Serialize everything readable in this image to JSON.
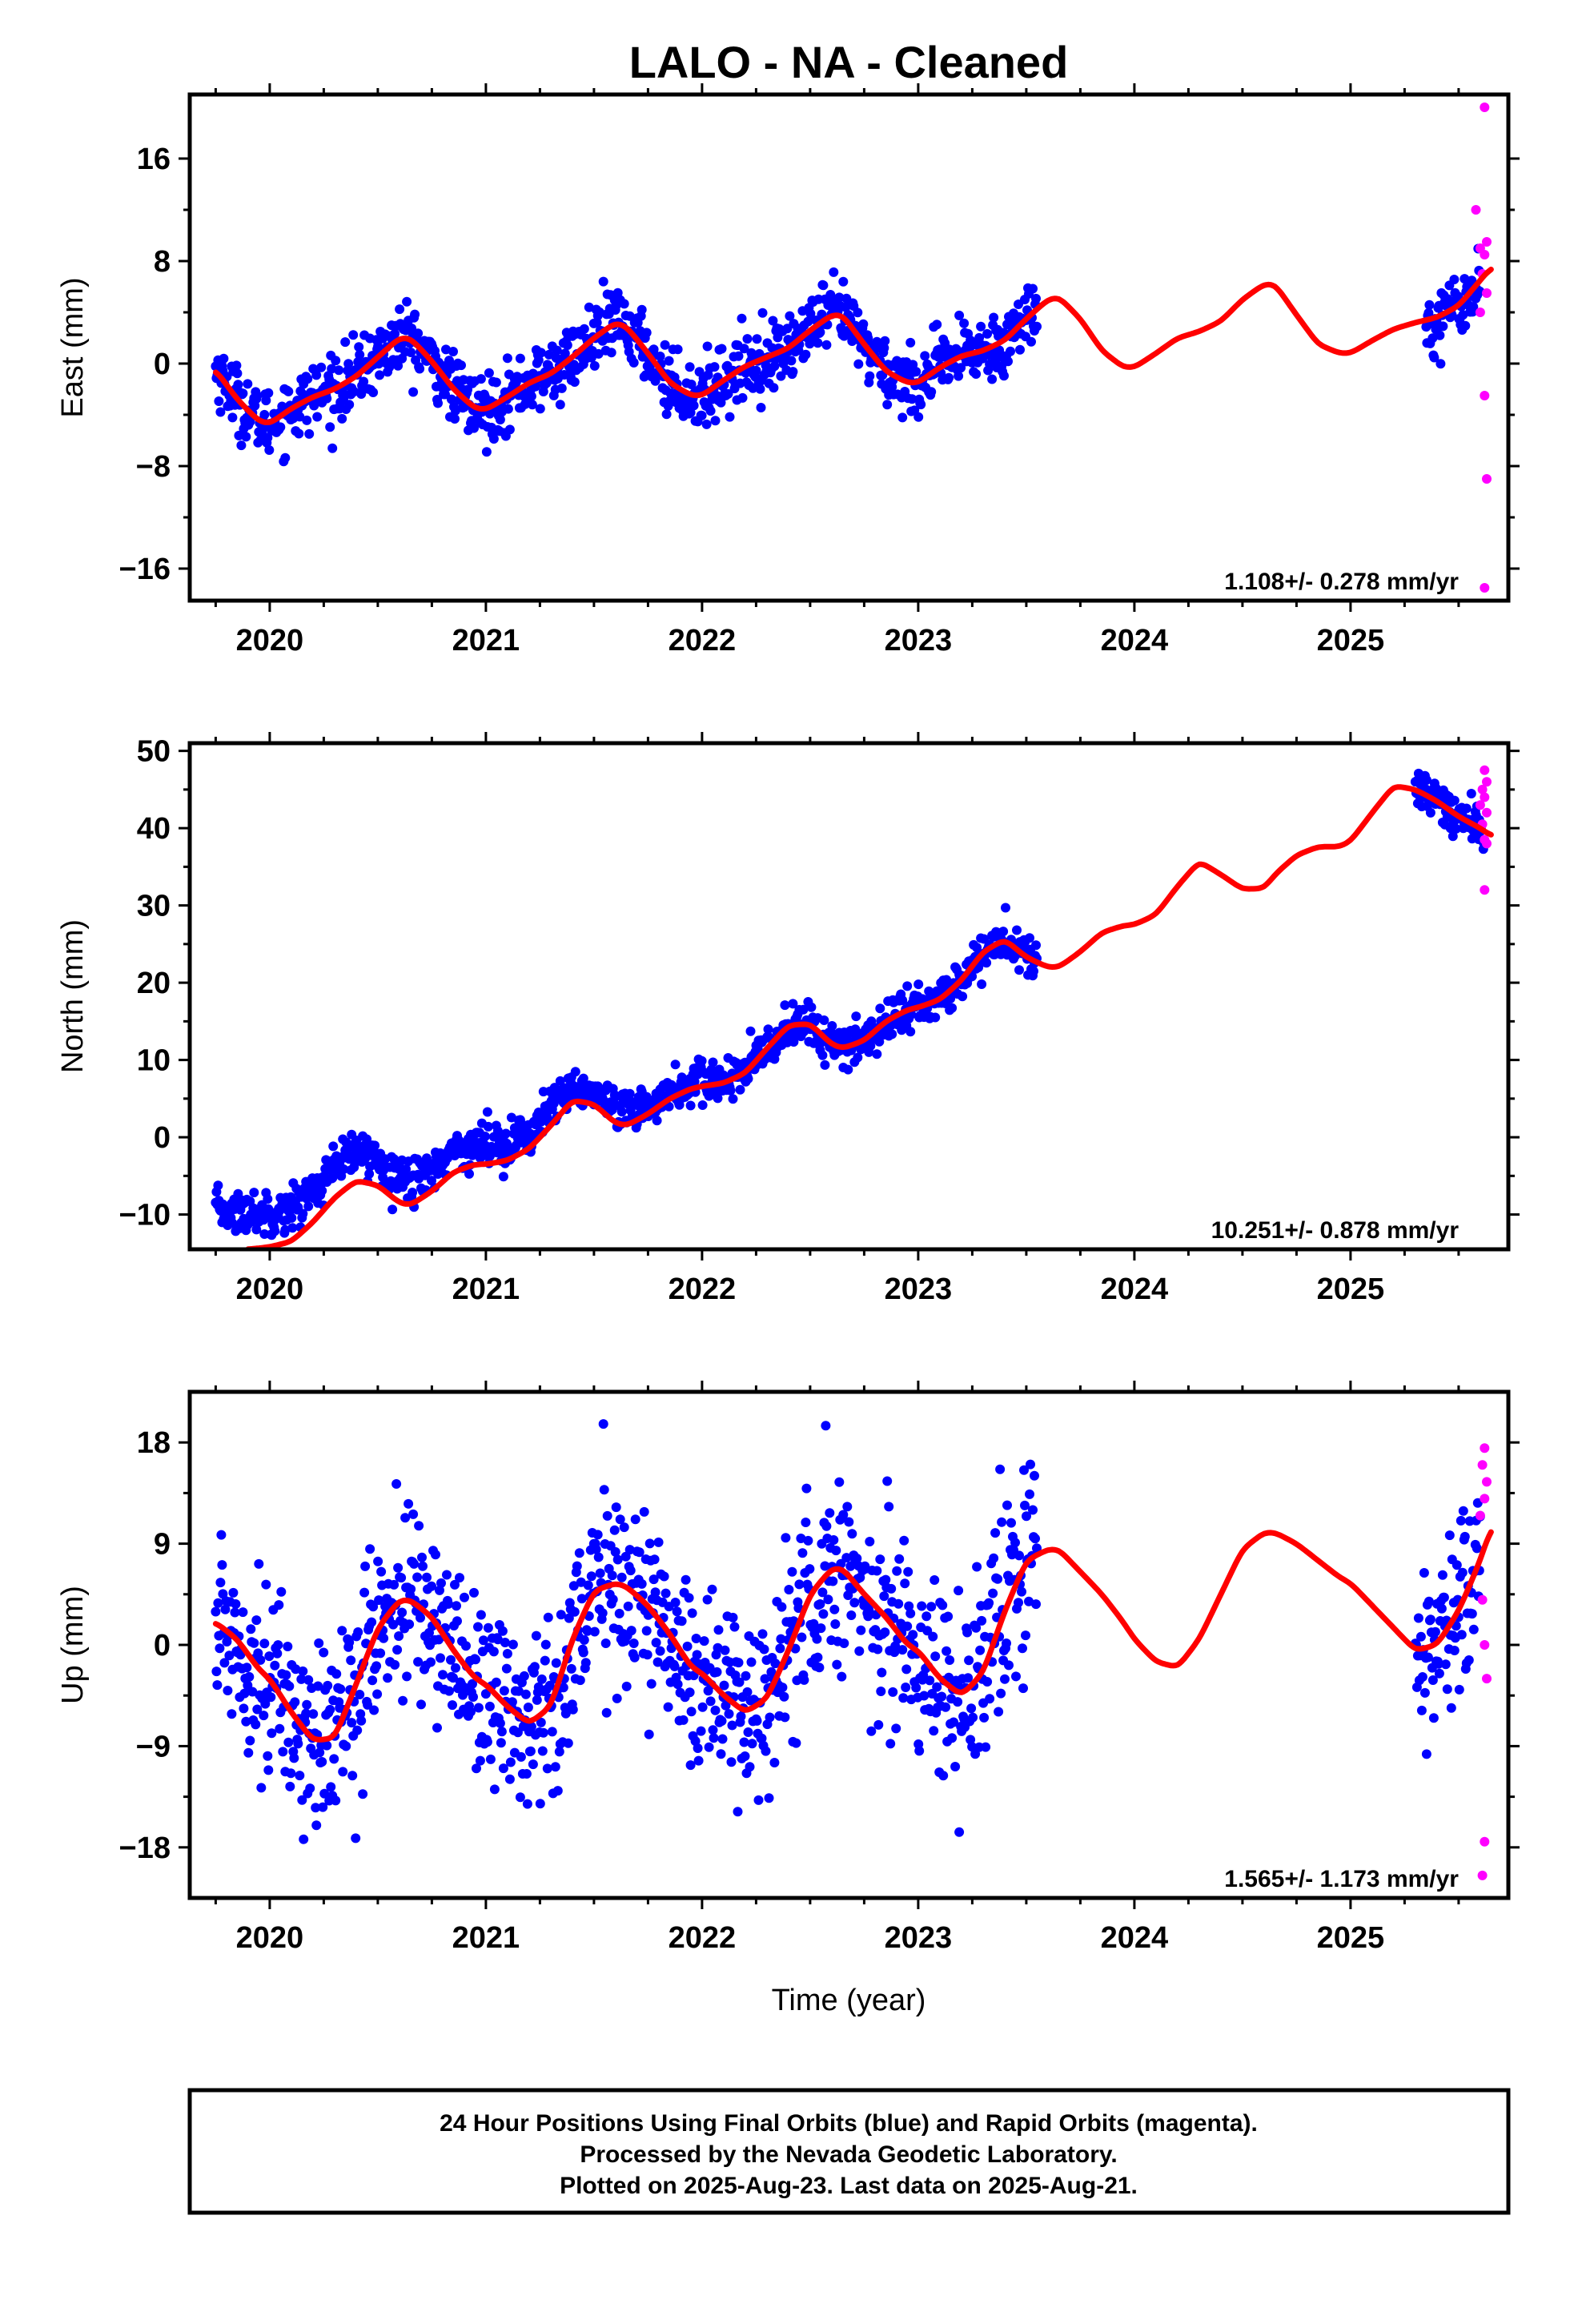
{
  "title": "LALO  - NA - Cleaned",
  "xlabel": "Time (year)",
  "footnote": [
    "24 Hour Positions Using Final Orbits (blue) and Rapid Orbits (magenta).",
    "Processed by the Nevada Geodetic Laboratory.",
    "Plotted on 2025-Aug-23. Last data on 2025-Aug-21."
  ],
  "colors": {
    "final": "#0000ff",
    "rapid": "#ff00ff",
    "model": "#ff0000",
    "frame": "#000000"
  },
  "chart_data": [
    {
      "type": "scatter",
      "ylabel": "East (mm)",
      "rate_label": "1.108+/- 0.278 mm/yr",
      "xlim": [
        2019.63,
        2025.73
      ],
      "ylim": [
        -18.5,
        21
      ],
      "xticks": [
        2020,
        2021,
        2022,
        2023,
        2024,
        2025
      ],
      "yticks": [
        -16,
        -8,
        0,
        8,
        16
      ],
      "final_segments": [
        [
          2019.75,
          2023.55
        ],
        [
          2025.35,
          2025.6
        ]
      ],
      "rapid_points": [
        [
          2025.62,
          20.0
        ],
        [
          2025.58,
          12.0
        ],
        [
          2025.63,
          9.5
        ],
        [
          2025.6,
          9.0
        ],
        [
          2025.62,
          8.5
        ],
        [
          2025.61,
          7.0
        ],
        [
          2025.63,
          5.5
        ],
        [
          2025.6,
          4.0
        ],
        [
          2025.62,
          -2.5
        ],
        [
          2025.63,
          -9.0
        ],
        [
          2025.62,
          -17.5
        ]
      ],
      "model": {
        "x": [
          2019.75,
          2019.85,
          2019.95,
          2020.0,
          2020.1,
          2020.2,
          2020.3,
          2020.4,
          2020.5,
          2020.6,
          2020.65,
          2020.75,
          2020.85,
          2020.95,
          2021.0,
          2021.1,
          2021.2,
          2021.3,
          2021.4,
          2021.5,
          2021.6,
          2021.65,
          2021.75,
          2021.85,
          2021.95,
          2022.0,
          2022.1,
          2022.2,
          2022.3,
          2022.4,
          2022.5,
          2022.6,
          2022.65,
          2022.75,
          2022.85,
          2022.95,
          2023.0,
          2023.1,
          2023.2,
          2023.3,
          2023.4,
          2023.5,
          2023.6,
          2023.65,
          2023.75,
          2023.85,
          2023.95,
          2024.0,
          2024.1,
          2024.2,
          2024.3,
          2024.4,
          2024.5,
          2024.6,
          2024.65,
          2024.75,
          2024.85,
          2024.95,
          2025.0,
          2025.1,
          2025.2,
          2025.3,
          2025.4,
          2025.5,
          2025.6,
          2025.65
        ],
        "y": [
          -0.5,
          -2.8,
          -4.5,
          -4.7,
          -3.5,
          -2.6,
          -2.0,
          -1.0,
          0.5,
          2.0,
          2.0,
          0.2,
          -2.0,
          -3.5,
          -3.6,
          -2.6,
          -1.5,
          -0.8,
          0.5,
          2.0,
          3.2,
          2.9,
          0.8,
          -1.5,
          -2.5,
          -2.5,
          -1.3,
          -0.2,
          0.5,
          1.2,
          2.6,
          3.8,
          3.8,
          1.5,
          -0.6,
          -1.5,
          -1.5,
          -0.3,
          0.6,
          1.0,
          1.8,
          3.5,
          5.0,
          5.2,
          3.5,
          1.0,
          -0.3,
          -0.3,
          0.8,
          2.0,
          2.5,
          3.3,
          5.0,
          6.2,
          6.2,
          3.8,
          1.5,
          0.8,
          0.8,
          1.8,
          2.7,
          3.2,
          3.6,
          4.5,
          6.5,
          7.5
        ]
      }
    },
    {
      "type": "scatter",
      "ylabel": "North (mm)",
      "rate_label": "10.251+/- 0.878 mm/yr",
      "xlim": [
        2019.63,
        2025.73
      ],
      "ylim": [
        -14.5,
        51
      ],
      "xticks": [
        2020,
        2021,
        2022,
        2023,
        2024,
        2025
      ],
      "yticks": [
        -10,
        0,
        10,
        20,
        30,
        40,
        50
      ],
      "final_segments": [
        [
          2019.75,
          2023.55
        ],
        [
          2025.3,
          2025.62
        ]
      ],
      "rapid_points": [
        [
          2025.62,
          47.5
        ],
        [
          2025.63,
          46.0
        ],
        [
          2025.61,
          45.0
        ],
        [
          2025.62,
          44.0
        ],
        [
          2025.6,
          43.0
        ],
        [
          2025.63,
          42.0
        ],
        [
          2025.61,
          40.5
        ],
        [
          2025.62,
          38.5
        ],
        [
          2025.63,
          38.0
        ],
        [
          2025.62,
          32.0
        ]
      ],
      "model": {
        "x": [
          2019.9,
          2020.0,
          2020.1,
          2020.2,
          2020.3,
          2020.4,
          2020.5,
          2020.6,
          2020.65,
          2020.75,
          2020.85,
          2020.95,
          2021.0,
          2021.1,
          2021.2,
          2021.3,
          2021.4,
          2021.5,
          2021.6,
          2021.65,
          2021.75,
          2021.85,
          2021.95,
          2022.0,
          2022.1,
          2022.2,
          2022.3,
          2022.4,
          2022.5,
          2022.6,
          2022.65,
          2022.75,
          2022.85,
          2022.95,
          2023.0,
          2023.1,
          2023.2,
          2023.3,
          2023.4,
          2023.5,
          2023.6,
          2023.65,
          2023.75,
          2023.85,
          2023.95,
          2024.0,
          2024.1,
          2024.2,
          2024.3,
          2024.4,
          2024.5,
          2024.6,
          2024.65,
          2024.75,
          2024.85,
          2024.95,
          2025.0,
          2025.1,
          2025.2,
          2025.3,
          2025.4,
          2025.5,
          2025.6,
          2025.65
        ],
        "y": [
          -14.5,
          -14.2,
          -13.5,
          -11.0,
          -7.8,
          -5.6,
          -6.2,
          -8.5,
          -8.8,
          -7.0,
          -4.5,
          -3.5,
          -3.5,
          -3.0,
          -1.5,
          1.5,
          4.8,
          4.3,
          1.8,
          1.5,
          3.0,
          5.0,
          6.3,
          6.6,
          7.0,
          8.3,
          11.5,
          14.5,
          14.7,
          12.0,
          11.5,
          12.5,
          15.0,
          16.5,
          16.8,
          17.8,
          20.3,
          24.0,
          25.6,
          23.3,
          22.0,
          22.0,
          24.0,
          26.5,
          27.4,
          27.5,
          28.8,
          32.5,
          35.7,
          34.0,
          32.1,
          32.2,
          34.0,
          36.5,
          37.6,
          37.6,
          38.3,
          42.0,
          45.5,
          45.0,
          43.5,
          41.5,
          40.0,
          39.0
        ]
      }
    },
    {
      "type": "scatter",
      "ylabel": "Up (mm)",
      "rate_label": "1.565+/- 1.173 mm/yr",
      "xlim": [
        2019.63,
        2025.73
      ],
      "ylim": [
        -22.5,
        22.5
      ],
      "xticks": [
        2020,
        2021,
        2022,
        2023,
        2024,
        2025
      ],
      "yticks": [
        -18,
        -9,
        0,
        9,
        18
      ],
      "final_segments": [
        [
          2019.75,
          2023.55
        ],
        [
          2025.3,
          2025.6
        ]
      ],
      "rapid_points": [
        [
          2025.62,
          17.5
        ],
        [
          2025.61,
          16.0
        ],
        [
          2025.63,
          14.5
        ],
        [
          2025.62,
          13.0
        ],
        [
          2025.6,
          11.5
        ],
        [
          2025.61,
          4.0
        ],
        [
          2025.62,
          0.0
        ],
        [
          2025.63,
          -3.0
        ],
        [
          2025.62,
          -17.5
        ],
        [
          2025.61,
          -20.5
        ]
      ],
      "model": {
        "x": [
          2019.75,
          2019.85,
          2019.95,
          2020.0,
          2020.1,
          2020.2,
          2020.3,
          2020.4,
          2020.5,
          2020.6,
          2020.65,
          2020.75,
          2020.85,
          2020.95,
          2021.0,
          2021.1,
          2021.2,
          2021.3,
          2021.4,
          2021.5,
          2021.6,
          2021.65,
          2021.75,
          2021.85,
          2021.95,
          2022.0,
          2022.1,
          2022.2,
          2022.3,
          2022.4,
          2022.5,
          2022.6,
          2022.65,
          2022.75,
          2022.85,
          2022.95,
          2023.0,
          2023.1,
          2023.2,
          2023.3,
          2023.4,
          2023.5,
          2023.6,
          2023.65,
          2023.75,
          2023.85,
          2023.95,
          2024.0,
          2024.1,
          2024.2,
          2024.3,
          2024.4,
          2024.5,
          2024.6,
          2024.65,
          2024.75,
          2024.85,
          2024.95,
          2025.0,
          2025.1,
          2025.2,
          2025.3,
          2025.4,
          2025.5,
          2025.6,
          2025.65
        ],
        "y": [
          2.0,
          0.5,
          -2.2,
          -3.0,
          -6.0,
          -8.5,
          -8.3,
          -3.5,
          1.5,
          4.0,
          4.0,
          2.5,
          -0.5,
          -3.0,
          -3.5,
          -5.5,
          -7.0,
          -5.5,
          0.5,
          4.8,
          5.5,
          5.2,
          3.5,
          1.0,
          -2.0,
          -2.5,
          -4.5,
          -6.0,
          -4.8,
          -0.5,
          4.5,
          6.8,
          6.8,
          4.5,
          2.5,
          0.0,
          -0.5,
          -3.0,
          -4.5,
          -2.5,
          3.0,
          7.5,
          8.5,
          8.5,
          6.5,
          4.5,
          2.0,
          0.5,
          -1.5,
          -2.0,
          0.5,
          4.5,
          8.5,
          10.0,
          10.0,
          9.0,
          7.5,
          6.0,
          5.5,
          3.5,
          1.5,
          -0.5,
          0.0,
          3.0,
          7.5,
          10.5
        ]
      }
    }
  ]
}
